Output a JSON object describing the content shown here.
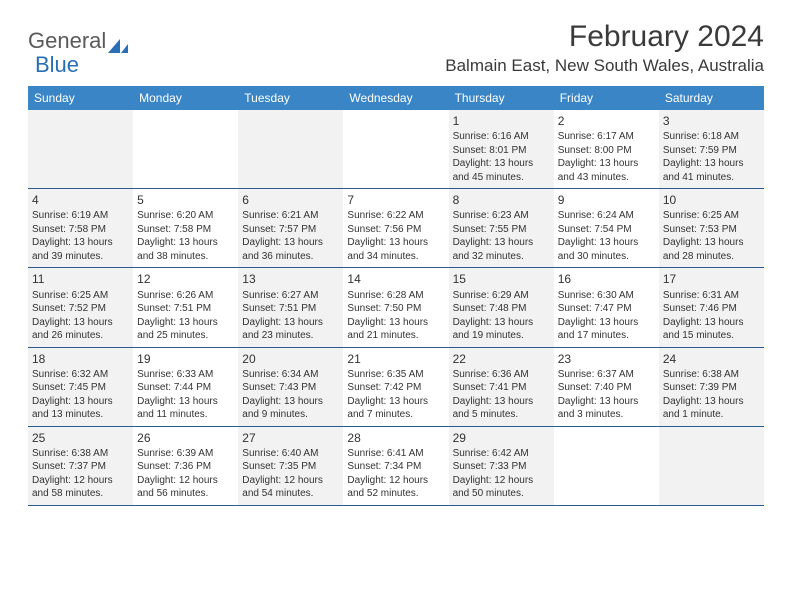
{
  "logo": {
    "part1": "General",
    "part2": "Blue"
  },
  "title": "February 2024",
  "location": "Balmain East, New South Wales, Australia",
  "columns": [
    "Sunday",
    "Monday",
    "Tuesday",
    "Wednesday",
    "Thursday",
    "Friday",
    "Saturday"
  ],
  "colors": {
    "header_bg": "#3a85c6",
    "header_text": "#ffffff",
    "row_divider": "#2a5d8f",
    "odd_cell_bg": "#f2f2f2",
    "even_cell_bg": "#ffffff",
    "logo_blue": "#2a6fb5"
  },
  "weeks": [
    [
      {
        "day": "",
        "sunrise": "",
        "sunset": "",
        "daylight": ""
      },
      {
        "day": "",
        "sunrise": "",
        "sunset": "",
        "daylight": ""
      },
      {
        "day": "",
        "sunrise": "",
        "sunset": "",
        "daylight": ""
      },
      {
        "day": "",
        "sunrise": "",
        "sunset": "",
        "daylight": ""
      },
      {
        "day": "1",
        "sunrise": "Sunrise: 6:16 AM",
        "sunset": "Sunset: 8:01 PM",
        "daylight": "Daylight: 13 hours and 45 minutes."
      },
      {
        "day": "2",
        "sunrise": "Sunrise: 6:17 AM",
        "sunset": "Sunset: 8:00 PM",
        "daylight": "Daylight: 13 hours and 43 minutes."
      },
      {
        "day": "3",
        "sunrise": "Sunrise: 6:18 AM",
        "sunset": "Sunset: 7:59 PM",
        "daylight": "Daylight: 13 hours and 41 minutes."
      }
    ],
    [
      {
        "day": "4",
        "sunrise": "Sunrise: 6:19 AM",
        "sunset": "Sunset: 7:58 PM",
        "daylight": "Daylight: 13 hours and 39 minutes."
      },
      {
        "day": "5",
        "sunrise": "Sunrise: 6:20 AM",
        "sunset": "Sunset: 7:58 PM",
        "daylight": "Daylight: 13 hours and 38 minutes."
      },
      {
        "day": "6",
        "sunrise": "Sunrise: 6:21 AM",
        "sunset": "Sunset: 7:57 PM",
        "daylight": "Daylight: 13 hours and 36 minutes."
      },
      {
        "day": "7",
        "sunrise": "Sunrise: 6:22 AM",
        "sunset": "Sunset: 7:56 PM",
        "daylight": "Daylight: 13 hours and 34 minutes."
      },
      {
        "day": "8",
        "sunrise": "Sunrise: 6:23 AM",
        "sunset": "Sunset: 7:55 PM",
        "daylight": "Daylight: 13 hours and 32 minutes."
      },
      {
        "day": "9",
        "sunrise": "Sunrise: 6:24 AM",
        "sunset": "Sunset: 7:54 PM",
        "daylight": "Daylight: 13 hours and 30 minutes."
      },
      {
        "day": "10",
        "sunrise": "Sunrise: 6:25 AM",
        "sunset": "Sunset: 7:53 PM",
        "daylight": "Daylight: 13 hours and 28 minutes."
      }
    ],
    [
      {
        "day": "11",
        "sunrise": "Sunrise: 6:25 AM",
        "sunset": "Sunset: 7:52 PM",
        "daylight": "Daylight: 13 hours and 26 minutes."
      },
      {
        "day": "12",
        "sunrise": "Sunrise: 6:26 AM",
        "sunset": "Sunset: 7:51 PM",
        "daylight": "Daylight: 13 hours and 25 minutes."
      },
      {
        "day": "13",
        "sunrise": "Sunrise: 6:27 AM",
        "sunset": "Sunset: 7:51 PM",
        "daylight": "Daylight: 13 hours and 23 minutes."
      },
      {
        "day": "14",
        "sunrise": "Sunrise: 6:28 AM",
        "sunset": "Sunset: 7:50 PM",
        "daylight": "Daylight: 13 hours and 21 minutes."
      },
      {
        "day": "15",
        "sunrise": "Sunrise: 6:29 AM",
        "sunset": "Sunset: 7:48 PM",
        "daylight": "Daylight: 13 hours and 19 minutes."
      },
      {
        "day": "16",
        "sunrise": "Sunrise: 6:30 AM",
        "sunset": "Sunset: 7:47 PM",
        "daylight": "Daylight: 13 hours and 17 minutes."
      },
      {
        "day": "17",
        "sunrise": "Sunrise: 6:31 AM",
        "sunset": "Sunset: 7:46 PM",
        "daylight": "Daylight: 13 hours and 15 minutes."
      }
    ],
    [
      {
        "day": "18",
        "sunrise": "Sunrise: 6:32 AM",
        "sunset": "Sunset: 7:45 PM",
        "daylight": "Daylight: 13 hours and 13 minutes."
      },
      {
        "day": "19",
        "sunrise": "Sunrise: 6:33 AM",
        "sunset": "Sunset: 7:44 PM",
        "daylight": "Daylight: 13 hours and 11 minutes."
      },
      {
        "day": "20",
        "sunrise": "Sunrise: 6:34 AM",
        "sunset": "Sunset: 7:43 PM",
        "daylight": "Daylight: 13 hours and 9 minutes."
      },
      {
        "day": "21",
        "sunrise": "Sunrise: 6:35 AM",
        "sunset": "Sunset: 7:42 PM",
        "daylight": "Daylight: 13 hours and 7 minutes."
      },
      {
        "day": "22",
        "sunrise": "Sunrise: 6:36 AM",
        "sunset": "Sunset: 7:41 PM",
        "daylight": "Daylight: 13 hours and 5 minutes."
      },
      {
        "day": "23",
        "sunrise": "Sunrise: 6:37 AM",
        "sunset": "Sunset: 7:40 PM",
        "daylight": "Daylight: 13 hours and 3 minutes."
      },
      {
        "day": "24",
        "sunrise": "Sunrise: 6:38 AM",
        "sunset": "Sunset: 7:39 PM",
        "daylight": "Daylight: 13 hours and 1 minute."
      }
    ],
    [
      {
        "day": "25",
        "sunrise": "Sunrise: 6:38 AM",
        "sunset": "Sunset: 7:37 PM",
        "daylight": "Daylight: 12 hours and 58 minutes."
      },
      {
        "day": "26",
        "sunrise": "Sunrise: 6:39 AM",
        "sunset": "Sunset: 7:36 PM",
        "daylight": "Daylight: 12 hours and 56 minutes."
      },
      {
        "day": "27",
        "sunrise": "Sunrise: 6:40 AM",
        "sunset": "Sunset: 7:35 PM",
        "daylight": "Daylight: 12 hours and 54 minutes."
      },
      {
        "day": "28",
        "sunrise": "Sunrise: 6:41 AM",
        "sunset": "Sunset: 7:34 PM",
        "daylight": "Daylight: 12 hours and 52 minutes."
      },
      {
        "day": "29",
        "sunrise": "Sunrise: 6:42 AM",
        "sunset": "Sunset: 7:33 PM",
        "daylight": "Daylight: 12 hours and 50 minutes."
      },
      {
        "day": "",
        "sunrise": "",
        "sunset": "",
        "daylight": ""
      },
      {
        "day": "",
        "sunrise": "",
        "sunset": "",
        "daylight": ""
      }
    ]
  ]
}
